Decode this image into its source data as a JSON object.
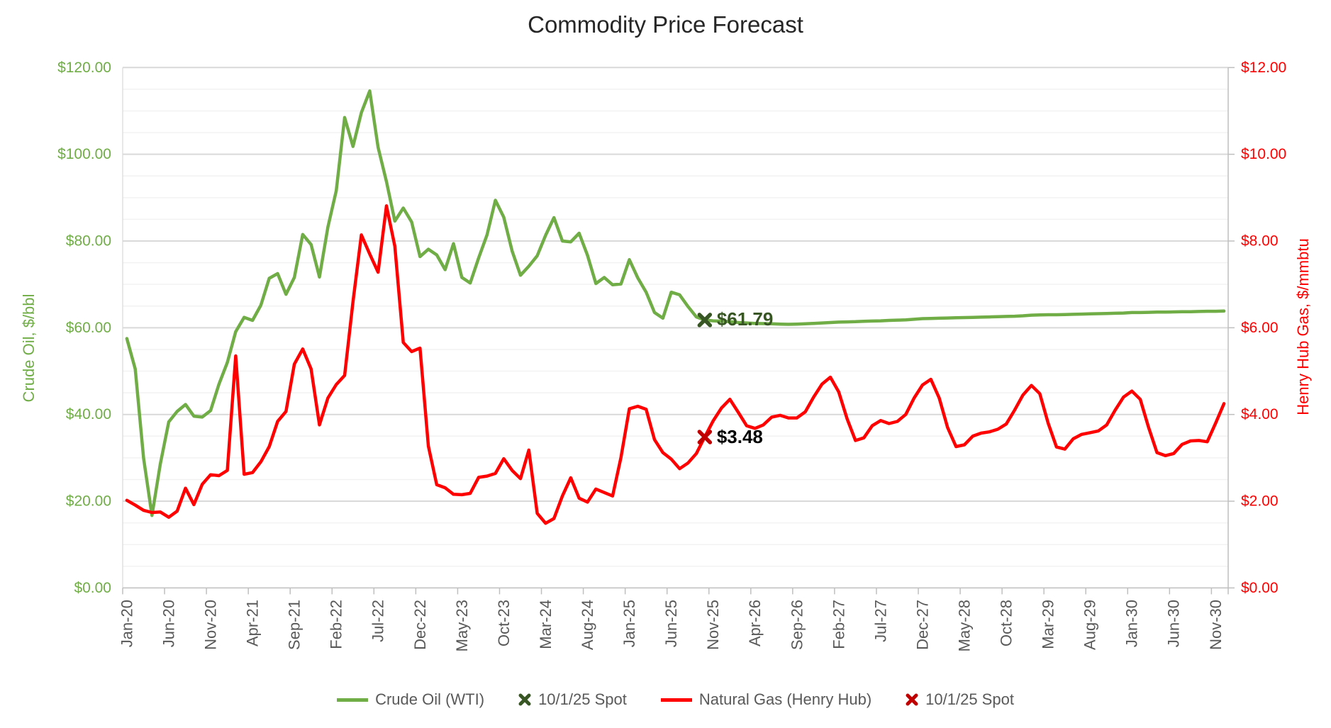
{
  "chart_data": {
    "type": "line",
    "title": "Commodity Price Forecast",
    "title_color": "#262626",
    "n_points": 132,
    "x": {
      "tick_interval_months": 5,
      "tick_labels": [
        "Jan-20",
        "Jun-20",
        "Nov-20",
        "Apr-21",
        "Sep-21",
        "Feb-22",
        "Jul-22",
        "Dec-22",
        "May-23",
        "Oct-23",
        "Mar-24",
        "Aug-24",
        "Jan-25",
        "Jun-25",
        "Nov-25",
        "Apr-26",
        "Sep-26",
        "Feb-27",
        "Jul-27",
        "Dec-27",
        "May-28",
        "Oct-28",
        "Mar-29",
        "Aug-29",
        "Jan-30",
        "Jun-30",
        "Nov-30"
      ],
      "label_color": "#595959"
    },
    "axes": {
      "left": {
        "title": "Crude Oil, $/bbl",
        "color": "#70AD47",
        "min": 0,
        "max": 120,
        "major_step": 20,
        "minor_step": 5,
        "tick_labels": [
          "$0.00",
          "$20.00",
          "$40.00",
          "$60.00",
          "$80.00",
          "$100.00",
          "$120.00"
        ]
      },
      "right": {
        "title": "Henry Hub Gas, $/mmbtu",
        "color": "#FF0000",
        "min": 0,
        "max": 12,
        "major_step": 2,
        "tick_labels": [
          "$0.00",
          "$2.00",
          "$4.00",
          "$6.00",
          "$8.00",
          "$10.00",
          "$12.00"
        ]
      }
    },
    "grid": {
      "major_color": "#D9D9D9",
      "minor_color": "#F2F2F2",
      "axis_line_color": "#BFBFBF"
    },
    "series": [
      {
        "name": "Crude Oil (WTI)",
        "axis": "left",
        "color": "#70AD47",
        "values": [
          57.5,
          50.5,
          29.9,
          16.7,
          28.6,
          38.3,
          40.7,
          42.3,
          39.6,
          39.4,
          40.9,
          47.0,
          52.0,
          59.1,
          62.4,
          61.7,
          65.2,
          71.4,
          72.5,
          67.7,
          71.6,
          81.5,
          79.2,
          71.7,
          83.2,
          91.6,
          108.5,
          101.8,
          109.6,
          114.6,
          101.6,
          93.7,
          84.6,
          87.6,
          84.4,
          76.4,
          78.1,
          76.8,
          73.4,
          79.4,
          71.6,
          70.3,
          76.1,
          81.4,
          89.4,
          85.5,
          77.7,
          72.1,
          74.2,
          76.6,
          81.3,
          85.4,
          80.0,
          79.8,
          81.8,
          76.7,
          70.2,
          71.6,
          69.9,
          70.1,
          75.7,
          71.5,
          68.2,
          63.5,
          62.2,
          68.2,
          67.6,
          64.9,
          62.5,
          61.79,
          61.6,
          61.5,
          61.4,
          61.2,
          61.1,
          61.0,
          60.95,
          60.9,
          60.85,
          60.8,
          60.85,
          60.9,
          61.0,
          61.1,
          61.2,
          61.3,
          61.35,
          61.4,
          61.5,
          61.55,
          61.6,
          61.7,
          61.75,
          61.8,
          61.95,
          62.1,
          62.15,
          62.2,
          62.25,
          62.3,
          62.35,
          62.4,
          62.45,
          62.5,
          62.55,
          62.6,
          62.65,
          62.75,
          62.9,
          62.95,
          63.0,
          63.0,
          63.05,
          63.1,
          63.15,
          63.2,
          63.25,
          63.3,
          63.35,
          63.4,
          63.5,
          63.5,
          63.55,
          63.6,
          63.6,
          63.65,
          63.7,
          63.7,
          63.75,
          63.8,
          63.8,
          63.85
        ]
      },
      {
        "name": "Natural Gas (Henry Hub)",
        "axis": "right",
        "color": "#FF0000",
        "values": [
          2.02,
          1.91,
          1.79,
          1.74,
          1.75,
          1.63,
          1.77,
          2.3,
          1.92,
          2.39,
          2.61,
          2.59,
          2.71,
          5.35,
          2.62,
          2.66,
          2.91,
          3.26,
          3.84,
          4.07,
          5.16,
          5.51,
          5.05,
          3.76,
          4.38,
          4.69,
          4.9,
          6.6,
          8.14,
          7.7,
          7.28,
          8.81,
          7.88,
          5.66,
          5.45,
          5.53,
          3.27,
          2.38,
          2.31,
          2.16,
          2.15,
          2.18,
          2.55,
          2.58,
          2.64,
          2.98,
          2.71,
          2.52,
          3.18,
          1.72,
          1.49,
          1.6,
          2.12,
          2.54,
          2.07,
          1.98,
          2.28,
          2.2,
          2.12,
          3.01,
          4.13,
          4.19,
          4.12,
          3.42,
          3.12,
          2.97,
          2.75,
          2.88,
          3.1,
          3.48,
          3.85,
          4.15,
          4.35,
          4.05,
          3.74,
          3.68,
          3.76,
          3.94,
          3.98,
          3.92,
          3.92,
          4.06,
          4.4,
          4.7,
          4.86,
          4.52,
          3.9,
          3.4,
          3.46,
          3.74,
          3.86,
          3.79,
          3.84,
          4.0,
          4.38,
          4.68,
          4.81,
          4.38,
          3.7,
          3.26,
          3.3,
          3.5,
          3.57,
          3.6,
          3.66,
          3.78,
          4.1,
          4.45,
          4.67,
          4.48,
          3.8,
          3.25,
          3.2,
          3.44,
          3.54,
          3.58,
          3.62,
          3.76,
          4.1,
          4.4,
          4.54,
          4.35,
          3.7,
          3.12,
          3.05,
          3.1,
          3.31,
          3.39,
          3.4,
          3.37,
          3.8,
          4.25
        ]
      }
    ],
    "spot_markers": [
      {
        "legend_label": "10/1/25 Spot",
        "series": "Crude Oil (WTI)",
        "axis": "left",
        "x_index": 69,
        "value": 61.79,
        "label": "$61.79",
        "marker_color": "#375623",
        "label_color": "#375623"
      },
      {
        "legend_label": "10/1/25 Spot",
        "series": "Natural Gas (Henry Hub)",
        "axis": "right",
        "x_index": 69,
        "value": 3.48,
        "label": "$3.48",
        "marker_color": "#C00000",
        "label_color": "#000000"
      }
    ],
    "legend": {
      "position": "bottom",
      "text_color": "#595959",
      "items": [
        {
          "label": "Crude Oil (WTI)",
          "sample": "line",
          "color": "#70AD47"
        },
        {
          "label": "10/1/25 Spot",
          "sample": "x-marker",
          "color": "#375623"
        },
        {
          "label": "Natural Gas (Henry Hub)",
          "sample": "line",
          "color": "#FF0000"
        },
        {
          "label": "10/1/25 Spot",
          "sample": "x-marker",
          "color": "#C00000"
        }
      ]
    },
    "layout": {
      "gridlines": "horizontal major+minor",
      "legend_position": "bottom center",
      "x_labels_rotated": true
    }
  }
}
